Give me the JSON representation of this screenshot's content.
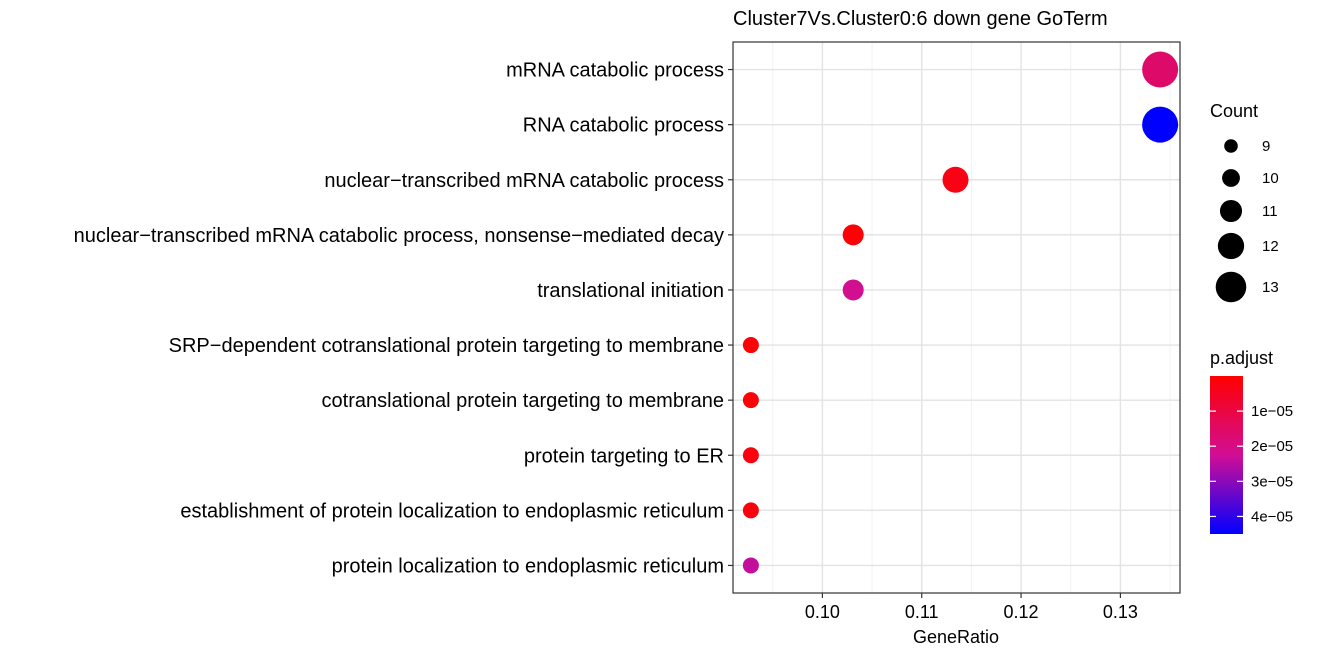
{
  "chart_data": {
    "type": "scatter",
    "title": "Cluster7Vs.Cluster0:6 down gene GoTerm",
    "xlabel": "GeneRatio",
    "ylabel": "",
    "xlim": [
      0.091,
      0.136
    ],
    "xticks": [
      0.1,
      0.11,
      0.12,
      0.13
    ],
    "xtick_labels": [
      "0.10",
      "0.11",
      "0.12",
      "0.13"
    ],
    "grid": true,
    "categories": [
      "mRNA catabolic process",
      "RNA catabolic process",
      "nuclear−transcribed mRNA catabolic process",
      "nuclear−transcribed mRNA catabolic process, nonsense−mediated decay",
      "translational initiation",
      "SRP−dependent cotranslational protein targeting to membrane",
      "cotranslational protein targeting to membrane",
      "protein targeting to ER",
      "establishment of protein localization to endoplasmic reticulum",
      "protein localization to endoplasmic reticulum"
    ],
    "points": [
      {
        "term": "mRNA catabolic process",
        "gene_ratio": 0.134,
        "count": 13,
        "p_adjust": 1.6e-05
      },
      {
        "term": "RNA catabolic process",
        "gene_ratio": 0.134,
        "count": 13,
        "p_adjust": 4.5e-05
      },
      {
        "term": "nuclear−transcribed mRNA catabolic process",
        "gene_ratio": 0.1134,
        "count": 11,
        "p_adjust": 3e-06
      },
      {
        "term": "nuclear−transcribed mRNA catabolic process, nonsense−mediated decay",
        "gene_ratio": 0.1031,
        "count": 10,
        "p_adjust": 1e-06
      },
      {
        "term": "translational initiation",
        "gene_ratio": 0.1031,
        "count": 10,
        "p_adjust": 2.2e-05
      },
      {
        "term": "SRP−dependent cotranslational protein targeting to membrane",
        "gene_ratio": 0.0928,
        "count": 9,
        "p_adjust": 1e-06
      },
      {
        "term": "cotranslational protein targeting to membrane",
        "gene_ratio": 0.0928,
        "count": 9,
        "p_adjust": 1e-06
      },
      {
        "term": "protein targeting to ER",
        "gene_ratio": 0.0928,
        "count": 9,
        "p_adjust": 2e-06
      },
      {
        "term": "establishment of protein localization to endoplasmic reticulum",
        "gene_ratio": 0.0928,
        "count": 9,
        "p_adjust": 2e-06
      },
      {
        "term": "protein localization to endoplasmic reticulum",
        "gene_ratio": 0.0928,
        "count": 9,
        "p_adjust": 2.4e-05
      }
    ],
    "size_legend": {
      "title": "Count",
      "values": [
        9,
        10,
        11,
        12,
        13
      ]
    },
    "color_legend": {
      "title": "p.adjust",
      "ticks": [
        1e-05,
        2e-05,
        3e-05,
        4e-05
      ],
      "tick_labels": [
        "1e−05",
        "2e−05",
        "3e−05",
        "4e−05"
      ],
      "range": [
        0,
        4.5e-05
      ],
      "low_color": "#FF0000",
      "high_color": "#0000FF"
    }
  }
}
